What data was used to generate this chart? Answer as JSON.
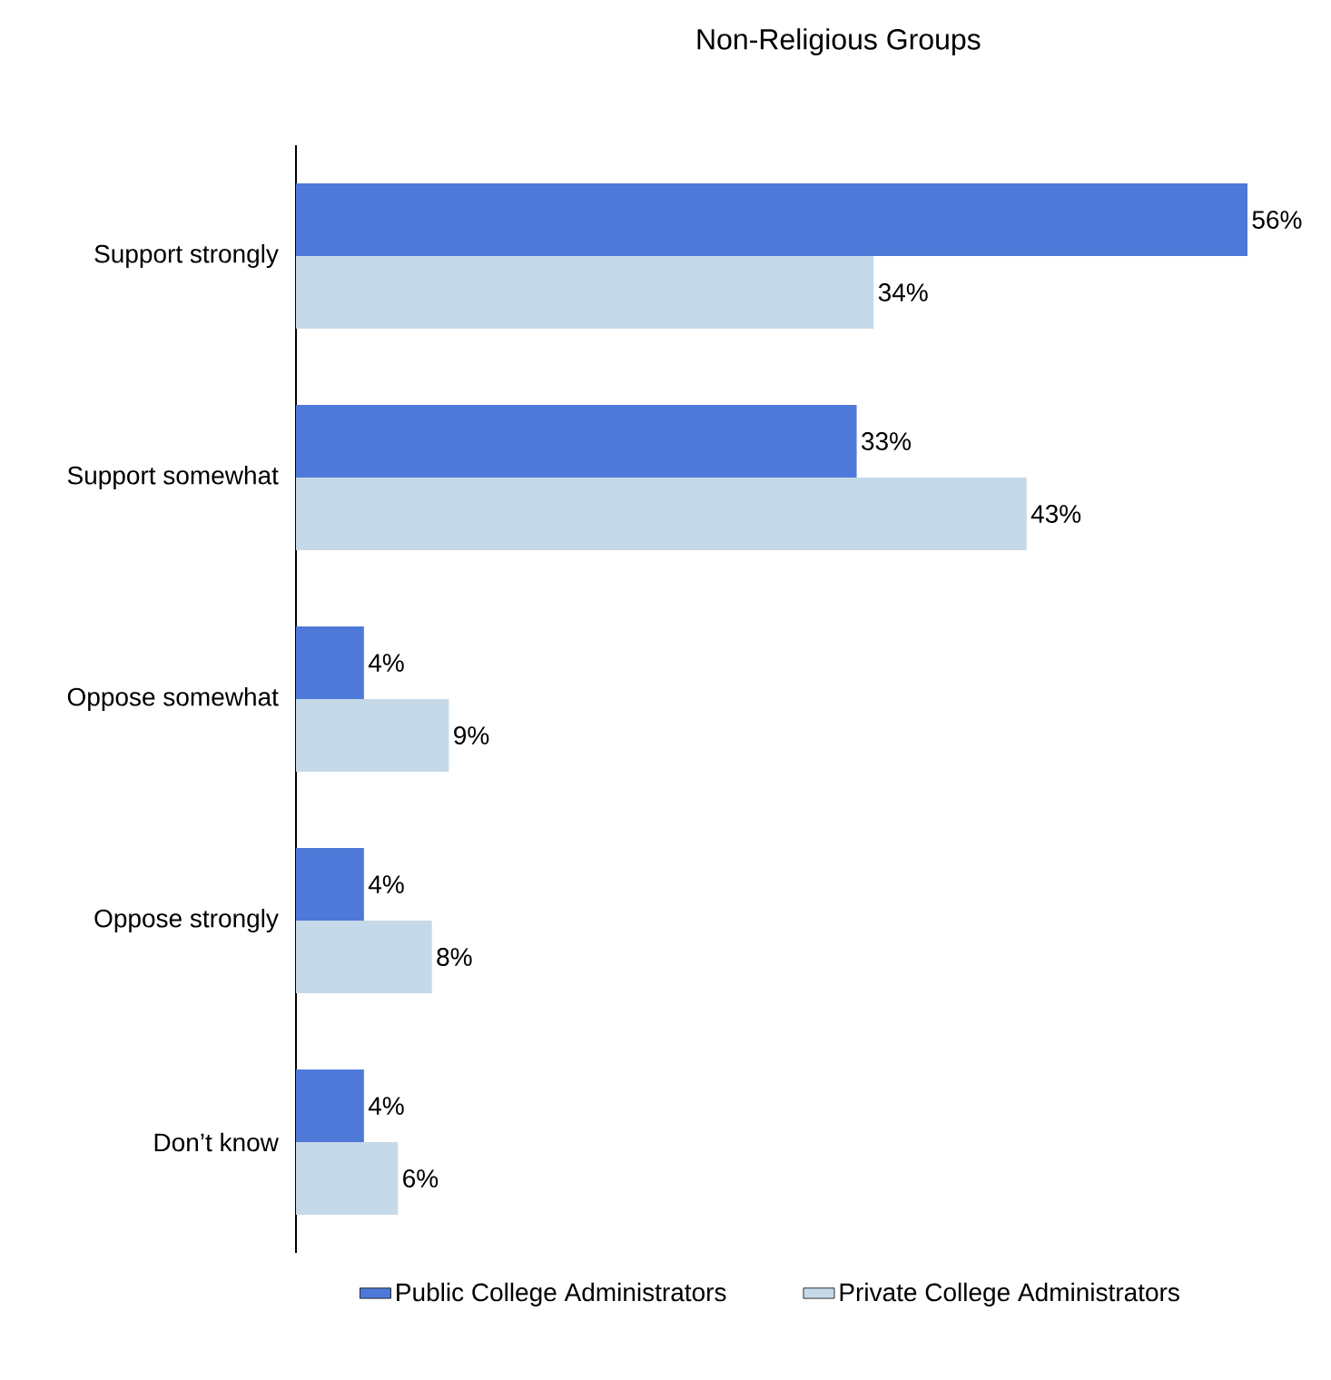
{
  "chart_data": {
    "type": "bar",
    "orientation": "horizontal",
    "title": "Non-Religious Groups",
    "categories": [
      "Support strongly",
      "Support somewhat",
      "Oppose somewhat",
      "Oppose strongly",
      "Don’t know"
    ],
    "series": [
      {
        "name": "Public College Administrators",
        "color": "#4e79d8",
        "values": [
          56,
          33,
          4,
          4,
          4
        ],
        "value_labels": [
          "56%",
          "33%",
          "4%",
          "4%",
          "4%"
        ]
      },
      {
        "name": "Private College Administrators",
        "color": "#c6d9e8",
        "values": [
          34,
          43,
          9,
          8,
          6
        ],
        "value_labels": [
          "34%",
          "43%",
          "9%",
          "8%",
          "6%"
        ]
      }
    ],
    "legend": "bottom"
  }
}
